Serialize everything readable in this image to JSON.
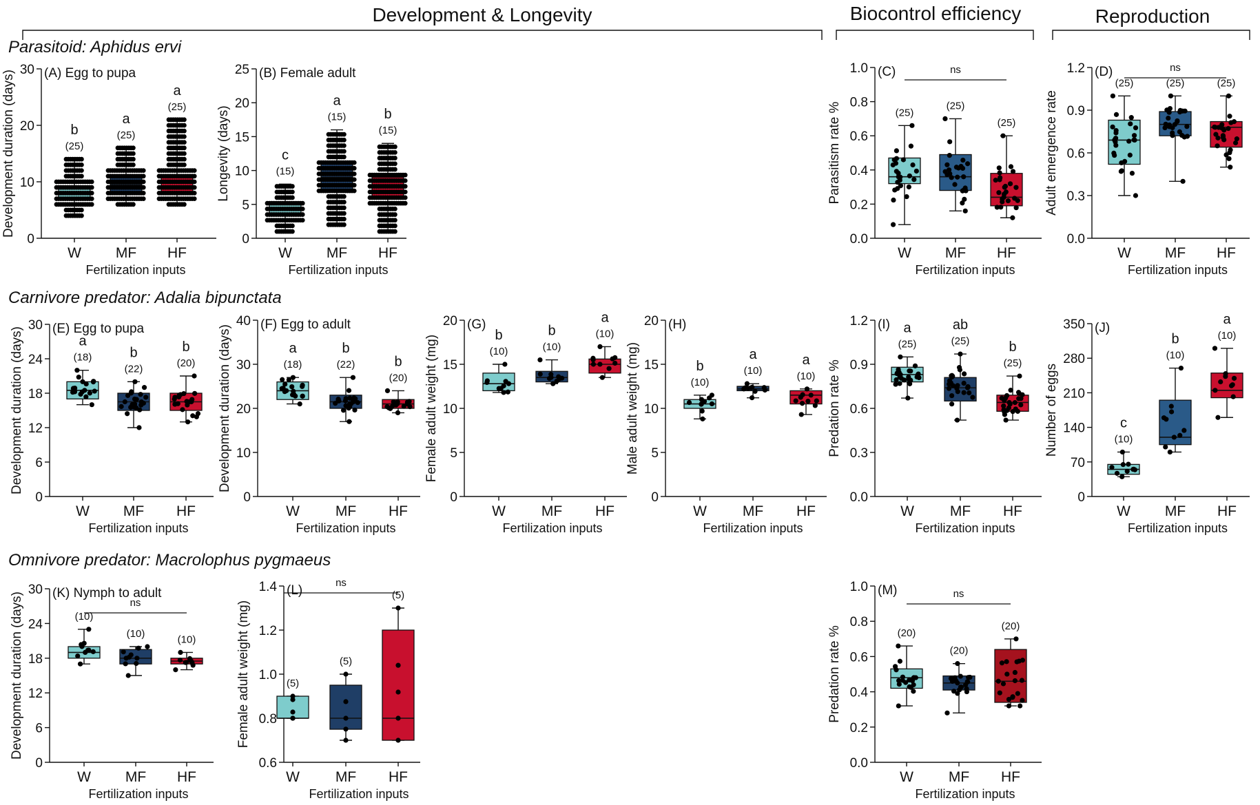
{
  "sections": [
    {
      "id": "dev",
      "title": "Development & Longevity"
    },
    {
      "id": "bio",
      "title": "Biocontrol efficiency"
    },
    {
      "id": "rep",
      "title": "Reproduction"
    }
  ],
  "rows": [
    {
      "id": "r1",
      "title": "Parasitoid: Aphidus ervi"
    },
    {
      "id": "r2",
      "title": "Carnivore predator: Adalia bipunctata"
    },
    {
      "id": "r3",
      "title": "Omnivore predator: Macrolophus pygmaeus"
    }
  ],
  "colors": {
    "W": "#7ecccc",
    "MF": "#1f3e66",
    "HF": "#c8102e",
    "HF_dark": "#a5121e",
    "MF_mid": "#2a5a88"
  },
  "chart_data": [
    {
      "id": "A",
      "type": "box",
      "panel_label": "(A) Egg to pupa",
      "ylabel": "Development duration (days)",
      "xlabel": "Fertilization inputs",
      "categories": [
        "W",
        "MF",
        "HF"
      ],
      "ylim": [
        0,
        30
      ],
      "yticks": [
        0,
        10,
        20,
        30
      ],
      "yticklabels": [
        "0",
        "10",
        "20",
        "30"
      ],
      "boxes": [
        {
          "min": 4,
          "q1": 7,
          "median": 7,
          "q3": 9,
          "max": 14
        },
        {
          "min": 6,
          "q1": 8,
          "median": 9.5,
          "q3": 11,
          "max": 16
        },
        {
          "min": 6,
          "q1": 8,
          "median": 9,
          "q3": 11,
          "max": 21
        }
      ],
      "n": [
        "(25)",
        "(25)",
        "(25)"
      ],
      "letters": [
        "b",
        "a",
        "a"
      ],
      "dots": "dense"
    },
    {
      "id": "B",
      "type": "box",
      "panel_label": "(B) Female adult",
      "ylabel": "Longevity (days)",
      "xlabel": "Fertilization inputs",
      "categories": [
        "W",
        "MF",
        "HF"
      ],
      "ylim": [
        0,
        25
      ],
      "yticks": [
        0,
        5,
        10,
        15,
        20,
        25
      ],
      "yticklabels": [
        "0",
        "5",
        "10",
        "15",
        "20",
        "25"
      ],
      "boxes": [
        {
          "min": 1,
          "q1": 3.5,
          "median": 4.5,
          "q3": 5,
          "max": 8
        },
        {
          "min": 2,
          "q1": 7,
          "median": 9,
          "q3": 11,
          "max": 16
        },
        {
          "min": 1,
          "q1": 6,
          "median": 7.5,
          "q3": 9,
          "max": 14
        }
      ],
      "n": [
        "(15)",
        "(15)",
        "(15)"
      ],
      "letters": [
        "c",
        "a",
        "b"
      ],
      "dots": "dense"
    },
    {
      "id": "C",
      "type": "box",
      "panel_label": "(C)",
      "ylabel": "Parasitism rate %",
      "xlabel": "Fertilization inputs",
      "categories": [
        "W",
        "MF",
        "HF"
      ],
      "ylim": [
        0,
        1
      ],
      "yticks": [
        0,
        0.2,
        0.4,
        0.6,
        0.8,
        1.0
      ],
      "yticklabels": [
        "0.0",
        "0.2",
        "0.4",
        "0.6",
        "0.8",
        "1.0"
      ],
      "boxes": [
        {
          "min": 0.08,
          "q1": 0.32,
          "median": 0.36,
          "q3": 0.47,
          "max": 0.66
        },
        {
          "min": 0.16,
          "q1": 0.28,
          "median": 0.36,
          "q3": 0.49,
          "max": 0.7
        },
        {
          "min": 0.12,
          "q1": 0.19,
          "median": 0.24,
          "q3": 0.38,
          "max": 0.6
        }
      ],
      "n": [
        "(25)",
        "(25)",
        "(25)"
      ],
      "ns": "ns",
      "dots": "sparse"
    },
    {
      "id": "D",
      "type": "box",
      "panel_label": "(D)",
      "ylabel": "Adult emergence rate",
      "xlabel": "Fertilization inputs",
      "categories": [
        "W",
        "MF",
        "HF"
      ],
      "ylim": [
        0,
        1.2
      ],
      "yticks": [
        0,
        0.3,
        0.6,
        0.9,
        1.2
      ],
      "yticklabels": [
        "0.0",
        "0.3",
        "0.6",
        "0.9",
        "1.2"
      ],
      "boxes": [
        {
          "min": 0.3,
          "q1": 0.52,
          "median": 0.69,
          "q3": 0.83,
          "max": 1.0
        },
        {
          "min": 0.4,
          "q1": 0.72,
          "median": 0.8,
          "q3": 0.89,
          "max": 1.0
        },
        {
          "min": 0.5,
          "q1": 0.64,
          "median": 0.78,
          "q3": 0.82,
          "max": 1.0
        }
      ],
      "n": [
        "(25)",
        "(25)",
        "(25)"
      ],
      "ns": "ns",
      "dots": "sparse"
    },
    {
      "id": "E",
      "type": "box",
      "panel_label": "(E)  Egg to pupa",
      "ylabel": "Development duration (days)",
      "xlabel": "Fertilization inputs",
      "categories": [
        "W",
        "MF",
        "HF"
      ],
      "ylim": [
        0,
        30
      ],
      "yticks": [
        0,
        6,
        12,
        18,
        24,
        30
      ],
      "yticklabels": [
        "0",
        "6",
        "12",
        "18",
        "24",
        "30"
      ],
      "boxes": [
        {
          "min": 16,
          "q1": 17,
          "median": 18.5,
          "q3": 20,
          "max": 22
        },
        {
          "min": 12,
          "q1": 15,
          "median": 16.5,
          "q3": 18,
          "max": 20
        },
        {
          "min": 13,
          "q1": 15,
          "median": 16.5,
          "q3": 18,
          "max": 21
        }
      ],
      "n": [
        "(18)",
        "(22)",
        "(20)"
      ],
      "letters": [
        "a",
        "b",
        "b"
      ],
      "dots": "sparse"
    },
    {
      "id": "F",
      "type": "box",
      "panel_label": "(F) Egg to adult",
      "ylabel": "Development duration (days)",
      "xlabel": "Fertilization inputs",
      "categories": [
        "W",
        "MF",
        "HF"
      ],
      "ylim": [
        0,
        40
      ],
      "yticks": [
        0,
        10,
        20,
        30,
        40
      ],
      "yticklabels": [
        "0",
        "10",
        "20",
        "30",
        "40"
      ],
      "boxes": [
        {
          "min": 21,
          "q1": 22,
          "median": 24,
          "q3": 26,
          "max": 27
        },
        {
          "min": 17,
          "q1": 20,
          "median": 21.5,
          "q3": 23,
          "max": 27
        },
        {
          "min": 19,
          "q1": 20,
          "median": 21,
          "q3": 22,
          "max": 24
        }
      ],
      "n": [
        "(18)",
        "(22)",
        "(20)"
      ],
      "letters": [
        "a",
        "b",
        "b"
      ],
      "dots": "sparse"
    },
    {
      "id": "G",
      "type": "box",
      "panel_label": "(G)",
      "ylabel": "Female adult weight  (mg)",
      "xlabel": "Fertilization inputs",
      "categories": [
        "W",
        "MF",
        "HF"
      ],
      "ylim": [
        0,
        20
      ],
      "yticks": [
        0,
        5,
        10,
        15,
        20
      ],
      "yticklabels": [
        "0",
        "5",
        "10",
        "15",
        "20"
      ],
      "boxes": [
        {
          "min": 11.8,
          "q1": 12,
          "median": 12.8,
          "q3": 14,
          "max": 15
        },
        {
          "min": 12.8,
          "q1": 13,
          "median": 13.5,
          "q3": 14.2,
          "max": 15.5
        },
        {
          "min": 13.5,
          "q1": 14,
          "median": 15,
          "q3": 15.6,
          "max": 17
        }
      ],
      "n": [
        "(10)",
        "(10)",
        "(10)"
      ],
      "letters": [
        "b",
        "b",
        "a"
      ],
      "dots": "sparse"
    },
    {
      "id": "H",
      "type": "box",
      "panel_label": "(H)",
      "ylabel": "Male adult weight (mg)",
      "xlabel": "Fertilization inputs",
      "categories": [
        "W",
        "MF",
        "HF"
      ],
      "ylim": [
        0,
        20
      ],
      "yticks": [
        0,
        5,
        10,
        15,
        20
      ],
      "yticklabels": [
        "0",
        "5",
        "10",
        "15",
        "20"
      ],
      "boxes": [
        {
          "min": 8.8,
          "q1": 10,
          "median": 10.5,
          "q3": 11,
          "max": 11.5
        },
        {
          "min": 11.2,
          "q1": 12,
          "median": 12.2,
          "q3": 12.5,
          "max": 12.8
        },
        {
          "min": 9.3,
          "q1": 10.5,
          "median": 11.5,
          "q3": 12,
          "max": 12.2
        }
      ],
      "n": [
        "(10)",
        "(10)",
        "(10)"
      ],
      "letters": [
        "b",
        "a",
        "a"
      ],
      "dots": "sparse"
    },
    {
      "id": "I",
      "type": "box",
      "panel_label": "(I)",
      "ylabel": "Predation rate %",
      "xlabel": "Fertilization inputs",
      "categories": [
        "W",
        "MF",
        "HF"
      ],
      "ylim": [
        0,
        1.2
      ],
      "yticks": [
        0,
        0.3,
        0.6,
        0.9,
        1.2
      ],
      "yticklabels": [
        "0.0",
        "0.3",
        "0.6",
        "0.9",
        "1.2"
      ],
      "boxes": [
        {
          "min": 0.67,
          "q1": 0.78,
          "median": 0.83,
          "q3": 0.88,
          "max": 0.95
        },
        {
          "min": 0.52,
          "q1": 0.65,
          "median": 0.74,
          "q3": 0.81,
          "max": 0.97
        },
        {
          "min": 0.52,
          "q1": 0.58,
          "median": 0.64,
          "q3": 0.69,
          "max": 0.82
        }
      ],
      "n": [
        "(25)",
        "(25)",
        "(25)"
      ],
      "letters": [
        "a",
        "ab",
        "b"
      ],
      "dots": "sparse"
    },
    {
      "id": "J",
      "type": "box",
      "panel_label": "(J)",
      "ylabel": "Number of eggs",
      "xlabel": "Fertilization inputs",
      "categories": [
        "W",
        "MF",
        "HF"
      ],
      "ylim": [
        0,
        350
      ],
      "yticks": [
        0,
        70,
        140,
        210,
        280,
        350
      ],
      "yticklabels": [
        "0",
        "70",
        "140",
        "210",
        "280",
        "350"
      ],
      "boxes": [
        {
          "min": 40,
          "q1": 45,
          "median": 55,
          "q3": 65,
          "max": 90
        },
        {
          "min": 90,
          "q1": 105,
          "median": 120,
          "q3": 195,
          "max": 260
        },
        {
          "min": 160,
          "q1": 200,
          "median": 215,
          "q3": 250,
          "max": 300
        }
      ],
      "n": [
        "(10)",
        "(10)",
        "(10)"
      ],
      "letters": [
        "c",
        "b",
        "a"
      ],
      "dots": "sparse"
    },
    {
      "id": "K",
      "type": "box",
      "panel_label": "(K) Nymph to adult",
      "ylabel": "Development duration (days)",
      "xlabel": "Fertilization inputs",
      "categories": [
        "W",
        "MF",
        "HF"
      ],
      "ylim": [
        0,
        30
      ],
      "yticks": [
        0,
        6,
        12,
        18,
        24,
        30
      ],
      "yticklabels": [
        "0",
        "6",
        "12",
        "18",
        "24",
        "30"
      ],
      "boxes": [
        {
          "min": 17,
          "q1": 18,
          "median": 19,
          "q3": 20,
          "max": 23
        },
        {
          "min": 15,
          "q1": 17,
          "median": 18,
          "q3": 19.5,
          "max": 20
        },
        {
          "min": 16,
          "q1": 17,
          "median": 17.5,
          "q3": 18,
          "max": 19
        }
      ],
      "n": [
        "(10)",
        "(10)",
        "(10)"
      ],
      "ns": "ns",
      "dots": "sparse"
    },
    {
      "id": "L",
      "type": "box",
      "panel_label": "(L)",
      "ylabel": "Female adult weight (mg)",
      "xlabel": "Fertilization inputs",
      "categories": [
        "W",
        "MF",
        "HF"
      ],
      "ylim": [
        0.6,
        1.4
      ],
      "yticks": [
        0.6,
        0.8,
        1.0,
        1.2,
        1.4
      ],
      "yticklabels": [
        "0.6",
        "0.8",
        "1.0",
        "1.2",
        "1.4"
      ],
      "boxes": [
        {
          "min": 0.8,
          "q1": 0.8,
          "median": 0.8,
          "q3": 0.9,
          "max": 0.9
        },
        {
          "min": 0.7,
          "q1": 0.75,
          "median": 0.8,
          "q3": 0.95,
          "max": 1.0
        },
        {
          "min": 0.7,
          "q1": 0.7,
          "median": 0.8,
          "q3": 1.2,
          "max": 1.3
        }
      ],
      "n": [
        "(5)",
        "(5)",
        "(5)"
      ],
      "ns": "ns",
      "dots": "few"
    },
    {
      "id": "M",
      "type": "box",
      "panel_label": "(M)",
      "ylabel": "Predation rate %",
      "xlabel": "Fertilization inputs",
      "categories": [
        "W",
        "MF",
        "HF"
      ],
      "ylim": [
        0,
        1
      ],
      "yticks": [
        0,
        0.2,
        0.4,
        0.6,
        0.8,
        1.0
      ],
      "yticklabels": [
        "0.0",
        "0.2",
        "0.4",
        "0.6",
        "0.8",
        "1.0"
      ],
      "boxes": [
        {
          "min": 0.32,
          "q1": 0.42,
          "median": 0.48,
          "q3": 0.53,
          "max": 0.66
        },
        {
          "min": 0.28,
          "q1": 0.41,
          "median": 0.45,
          "q3": 0.49,
          "max": 0.56
        },
        {
          "min": 0.32,
          "q1": 0.34,
          "median": 0.46,
          "q3": 0.64,
          "max": 0.7
        }
      ],
      "n": [
        "(20)",
        "(20)",
        "(20)"
      ],
      "ns": "ns",
      "dots": "sparse"
    }
  ]
}
